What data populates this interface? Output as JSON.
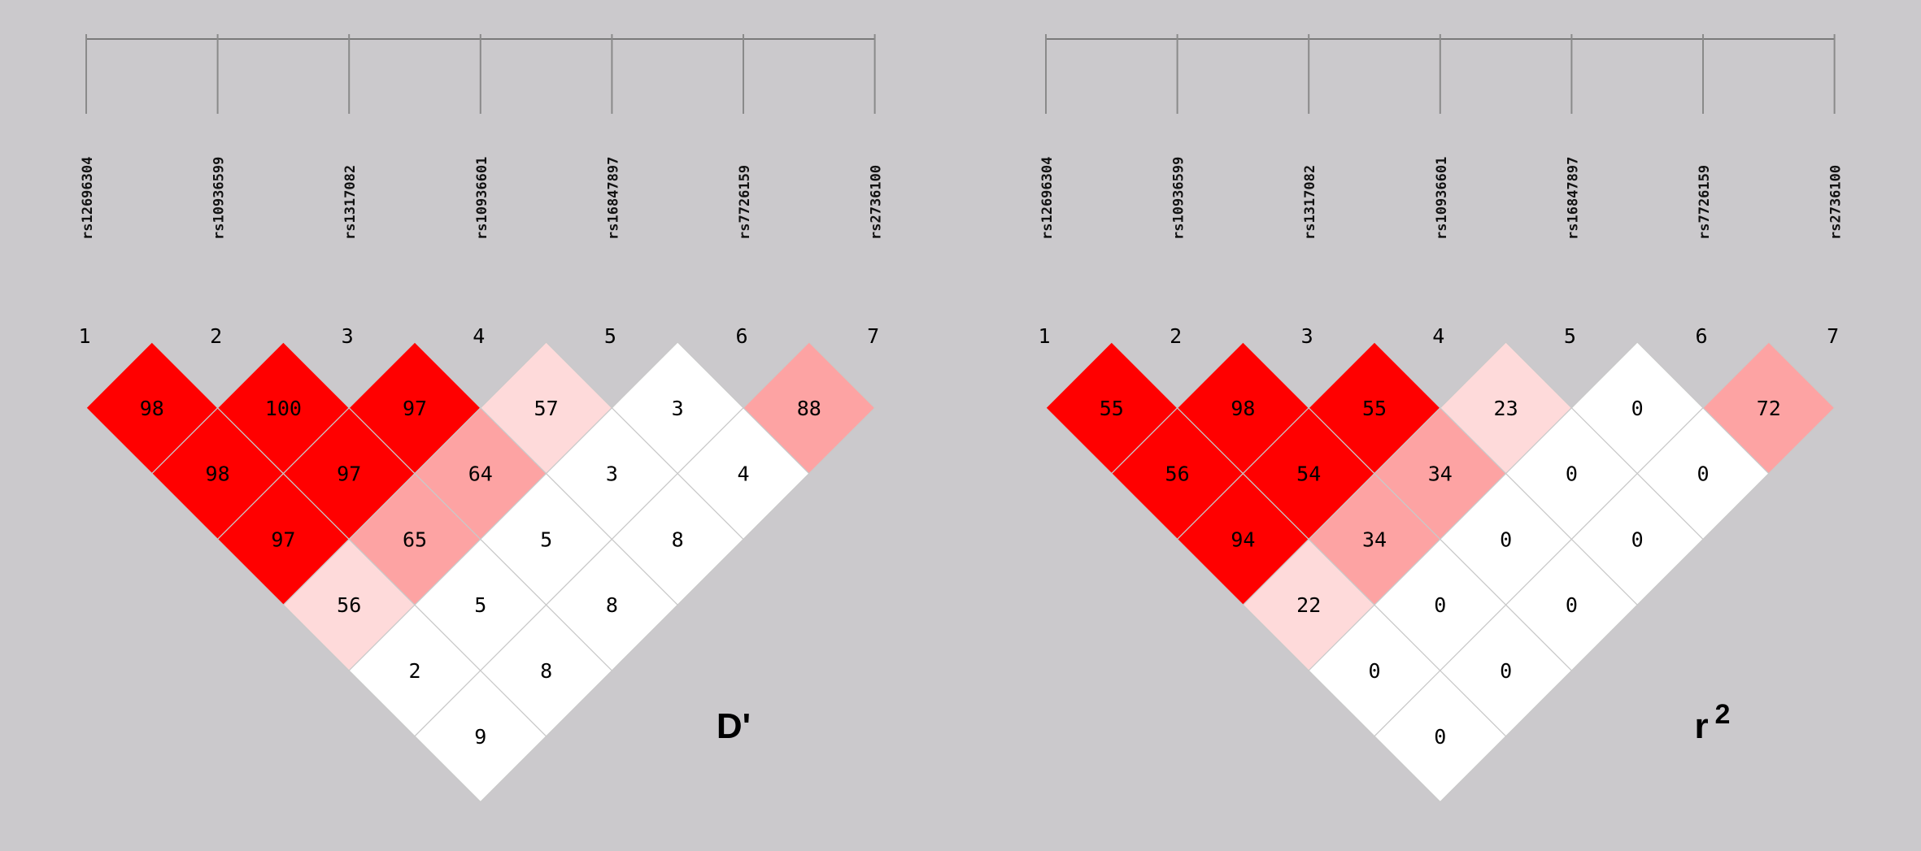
{
  "chart_data": [
    {
      "type": "heatmap",
      "title": "D'",
      "title_sup": "",
      "markers": [
        "rs12696304",
        "rs10936599",
        "rs1317082",
        "rs10936601",
        "rs16847897",
        "rs7726159",
        "rs2736100"
      ],
      "marker_numbers": [
        "1",
        "2",
        "3",
        "4",
        "5",
        "6",
        "7"
      ],
      "matrix": [
        [
          98,
          98,
          97,
          56,
          2,
          9
        ],
        [
          100,
          97,
          65,
          5,
          8
        ],
        [
          97,
          64,
          5,
          8
        ],
        [
          57,
          3,
          8
        ],
        [
          3,
          4
        ],
        [
          88
        ]
      ]
    },
    {
      "type": "heatmap",
      "title": "r",
      "title_sup": "2",
      "markers": [
        "rs12696304",
        "rs10936599",
        "rs1317082",
        "rs10936601",
        "rs16847897",
        "rs7726159",
        "rs2736100"
      ],
      "marker_numbers": [
        "1",
        "2",
        "3",
        "4",
        "5",
        "6",
        "7"
      ],
      "matrix": [
        [
          55,
          56,
          94,
          22,
          0,
          0
        ],
        [
          98,
          54,
          34,
          0,
          0
        ],
        [
          55,
          34,
          0,
          0
        ],
        [
          23,
          0,
          0
        ],
        [
          0,
          0
        ],
        [
          72
        ]
      ]
    }
  ],
  "colors": {
    "background": "#cbc9cc",
    "high": "#ff0000",
    "medium": "#fda3a3",
    "low": "#fedada",
    "none": "#ffffff",
    "text": "#000000"
  }
}
